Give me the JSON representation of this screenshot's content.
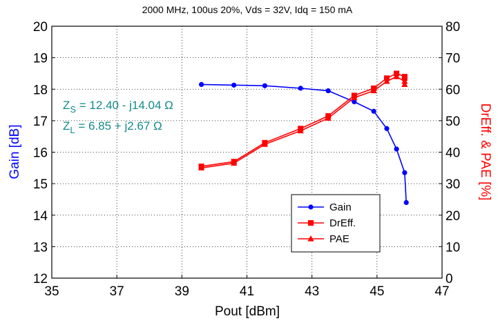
{
  "chart_data": {
    "type": "line",
    "title": "2000 MHz, 100us 20%, Vds = 32V, Idq = 150 mA",
    "xlabel": "Pout [dBm]",
    "ylabel_left": "Gain [dB]",
    "ylabel_right": "DrEff. & PAE [%]",
    "xlim": [
      35,
      47
    ],
    "ylim_left": [
      12,
      20
    ],
    "ylim_right": [
      0,
      80
    ],
    "x_ticks": [
      "35",
      "37",
      "39",
      "41",
      "43",
      "45",
      "47"
    ],
    "y_left_ticks": [
      "12",
      "13",
      "14",
      "15",
      "16",
      "17",
      "18",
      "19",
      "20"
    ],
    "y_right_ticks": [
      "0",
      "10",
      "20",
      "30",
      "40",
      "50",
      "60",
      "70",
      "80"
    ],
    "grid": true,
    "legend_position": "lower-right",
    "series": [
      {
        "name": "Gain",
        "axis": "left",
        "color": "#0000ff",
        "marker": "circle",
        "x": [
          39.6,
          40.6,
          41.55,
          42.65,
          43.5,
          44.3,
          44.9,
          45.3,
          45.6,
          45.85,
          45.9
        ],
        "y": [
          18.15,
          18.13,
          18.11,
          18.03,
          17.95,
          17.6,
          17.3,
          16.75,
          16.1,
          15.35,
          14.4
        ]
      },
      {
        "name": "DrEff.",
        "axis": "right",
        "color": "#ff0000",
        "marker": "square",
        "x": [
          39.6,
          40.6,
          41.55,
          42.65,
          43.5,
          44.3,
          44.9,
          45.3,
          45.6,
          45.85,
          45.85
        ],
        "y": [
          35.5,
          37.0,
          43.0,
          47.5,
          51.5,
          58.0,
          60.3,
          63.5,
          65.0,
          64.0,
          63.5
        ]
      },
      {
        "name": "PAE",
        "axis": "right",
        "color": "#ff0000",
        "marker": "triangle",
        "x": [
          39.6,
          40.6,
          41.55,
          42.65,
          43.5,
          44.3,
          44.9,
          45.3,
          45.6,
          45.85,
          45.85
        ],
        "y": [
          35.0,
          36.5,
          42.5,
          46.8,
          50.8,
          57.3,
          59.5,
          62.5,
          64.0,
          62.5,
          61.5
        ]
      }
    ],
    "annotations": {
      "zs_prefix": "Z",
      "zs_sub": "S",
      "zs_value": " = 12.40 - j14.04 Ω",
      "zl_prefix": "Z",
      "zl_sub": "L",
      "zl_value": " =  6.85 + j2.67  Ω"
    }
  }
}
